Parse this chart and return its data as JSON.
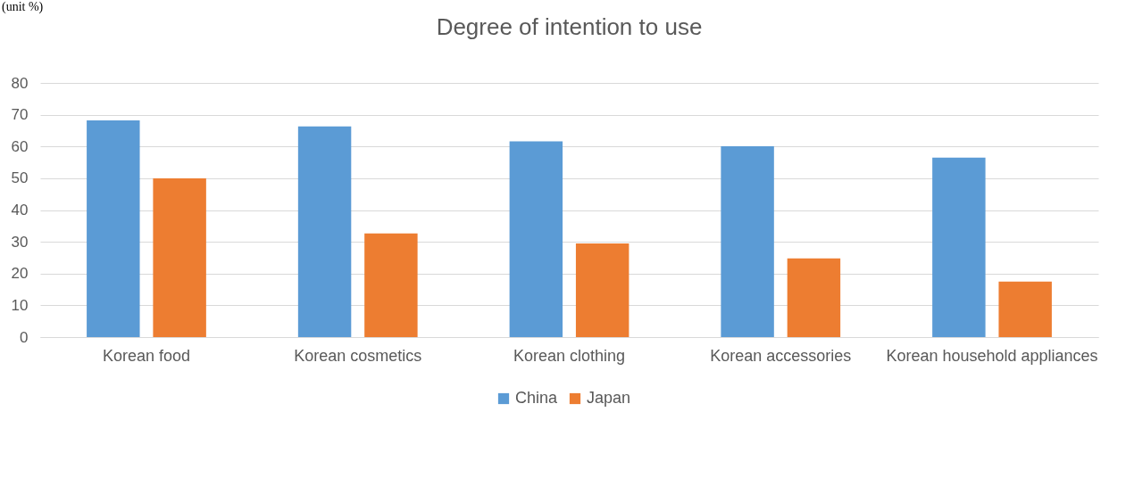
{
  "chart_data": {
    "type": "bar",
    "title": "Degree of intention to use",
    "annotations": [
      "(unit %)"
    ],
    "categories": [
      "Korean food",
      "Korean cosmetics",
      "Korean clothing",
      "Korean accessories",
      "Korean household appliances"
    ],
    "series": [
      {
        "name": "China",
        "color": "#5b9bd5",
        "values": [
          68.2,
          66.3,
          61.6,
          60.1,
          56.5
        ]
      },
      {
        "name": "Japan",
        "color": "#ed7d31",
        "values": [
          50.0,
          32.6,
          29.5,
          24.8,
          17.5
        ]
      }
    ],
    "ylim": [
      0,
      80
    ],
    "yticks": [
      0,
      10,
      20,
      30,
      40,
      50,
      60,
      70,
      80
    ],
    "grid": "y",
    "legend": "bottom"
  }
}
